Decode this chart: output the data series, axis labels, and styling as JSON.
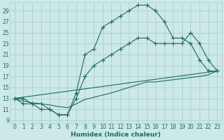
{
  "xlabel": "Humidex (Indice chaleur)",
  "bg_color": "#cce8e8",
  "grid_color": "#aacfcf",
  "line_color": "#1e6b5e",
  "xlim": [
    -0.5,
    23.5
  ],
  "ylim": [
    8.5,
    30.5
  ],
  "xticks": [
    0,
    1,
    2,
    3,
    4,
    5,
    6,
    7,
    8,
    9,
    10,
    11,
    12,
    13,
    14,
    15,
    16,
    17,
    18,
    19,
    20,
    21,
    22,
    23
  ],
  "yticks": [
    9,
    11,
    13,
    15,
    17,
    19,
    21,
    23,
    25,
    27,
    29
  ],
  "curve1_x": [
    0,
    1,
    2,
    3,
    4,
    5,
    6,
    7,
    8,
    9,
    10,
    11,
    12,
    13,
    14,
    15,
    16,
    17,
    18,
    19,
    20,
    21,
    22,
    23
  ],
  "curve1_y": [
    13,
    13,
    12,
    11,
    11,
    10,
    10,
    14,
    21,
    22,
    26,
    27,
    28,
    29,
    30,
    30,
    29,
    27,
    24,
    24,
    23,
    20,
    18,
    18
  ],
  "curve2_x": [
    0,
    1,
    2,
    3,
    4,
    5,
    6,
    7,
    8,
    9,
    10,
    11,
    12,
    13,
    14,
    15,
    16,
    17,
    18,
    19,
    20,
    21,
    22,
    23
  ],
  "curve2_y": [
    13,
    12,
    12,
    12,
    11,
    10,
    10,
    13,
    17,
    19,
    20,
    21,
    22,
    23,
    24,
    24,
    23,
    23,
    23,
    23,
    25,
    23,
    20,
    18
  ],
  "curve3_x": [
    0,
    1,
    2,
    3,
    4,
    5,
    6,
    7,
    8,
    9,
    10,
    11,
    12,
    13,
    14,
    15,
    16,
    17,
    18,
    19,
    20,
    21,
    22,
    23
  ],
  "curve3_y": [
    13,
    12.5,
    12.2,
    12,
    11.8,
    11.5,
    11.3,
    12,
    12.8,
    13.2,
    13.6,
    14,
    14.5,
    15,
    15.5,
    16,
    16,
    16.2,
    16.4,
    16.6,
    16.8,
    17,
    17.3,
    18
  ],
  "line4_x": [
    0,
    23
  ],
  "line4_y": [
    13,
    18
  ],
  "xlabel_fontsize": 6.5,
  "tick_fontsize": 5.5,
  "linewidth": 0.8,
  "markersize": 2.0
}
